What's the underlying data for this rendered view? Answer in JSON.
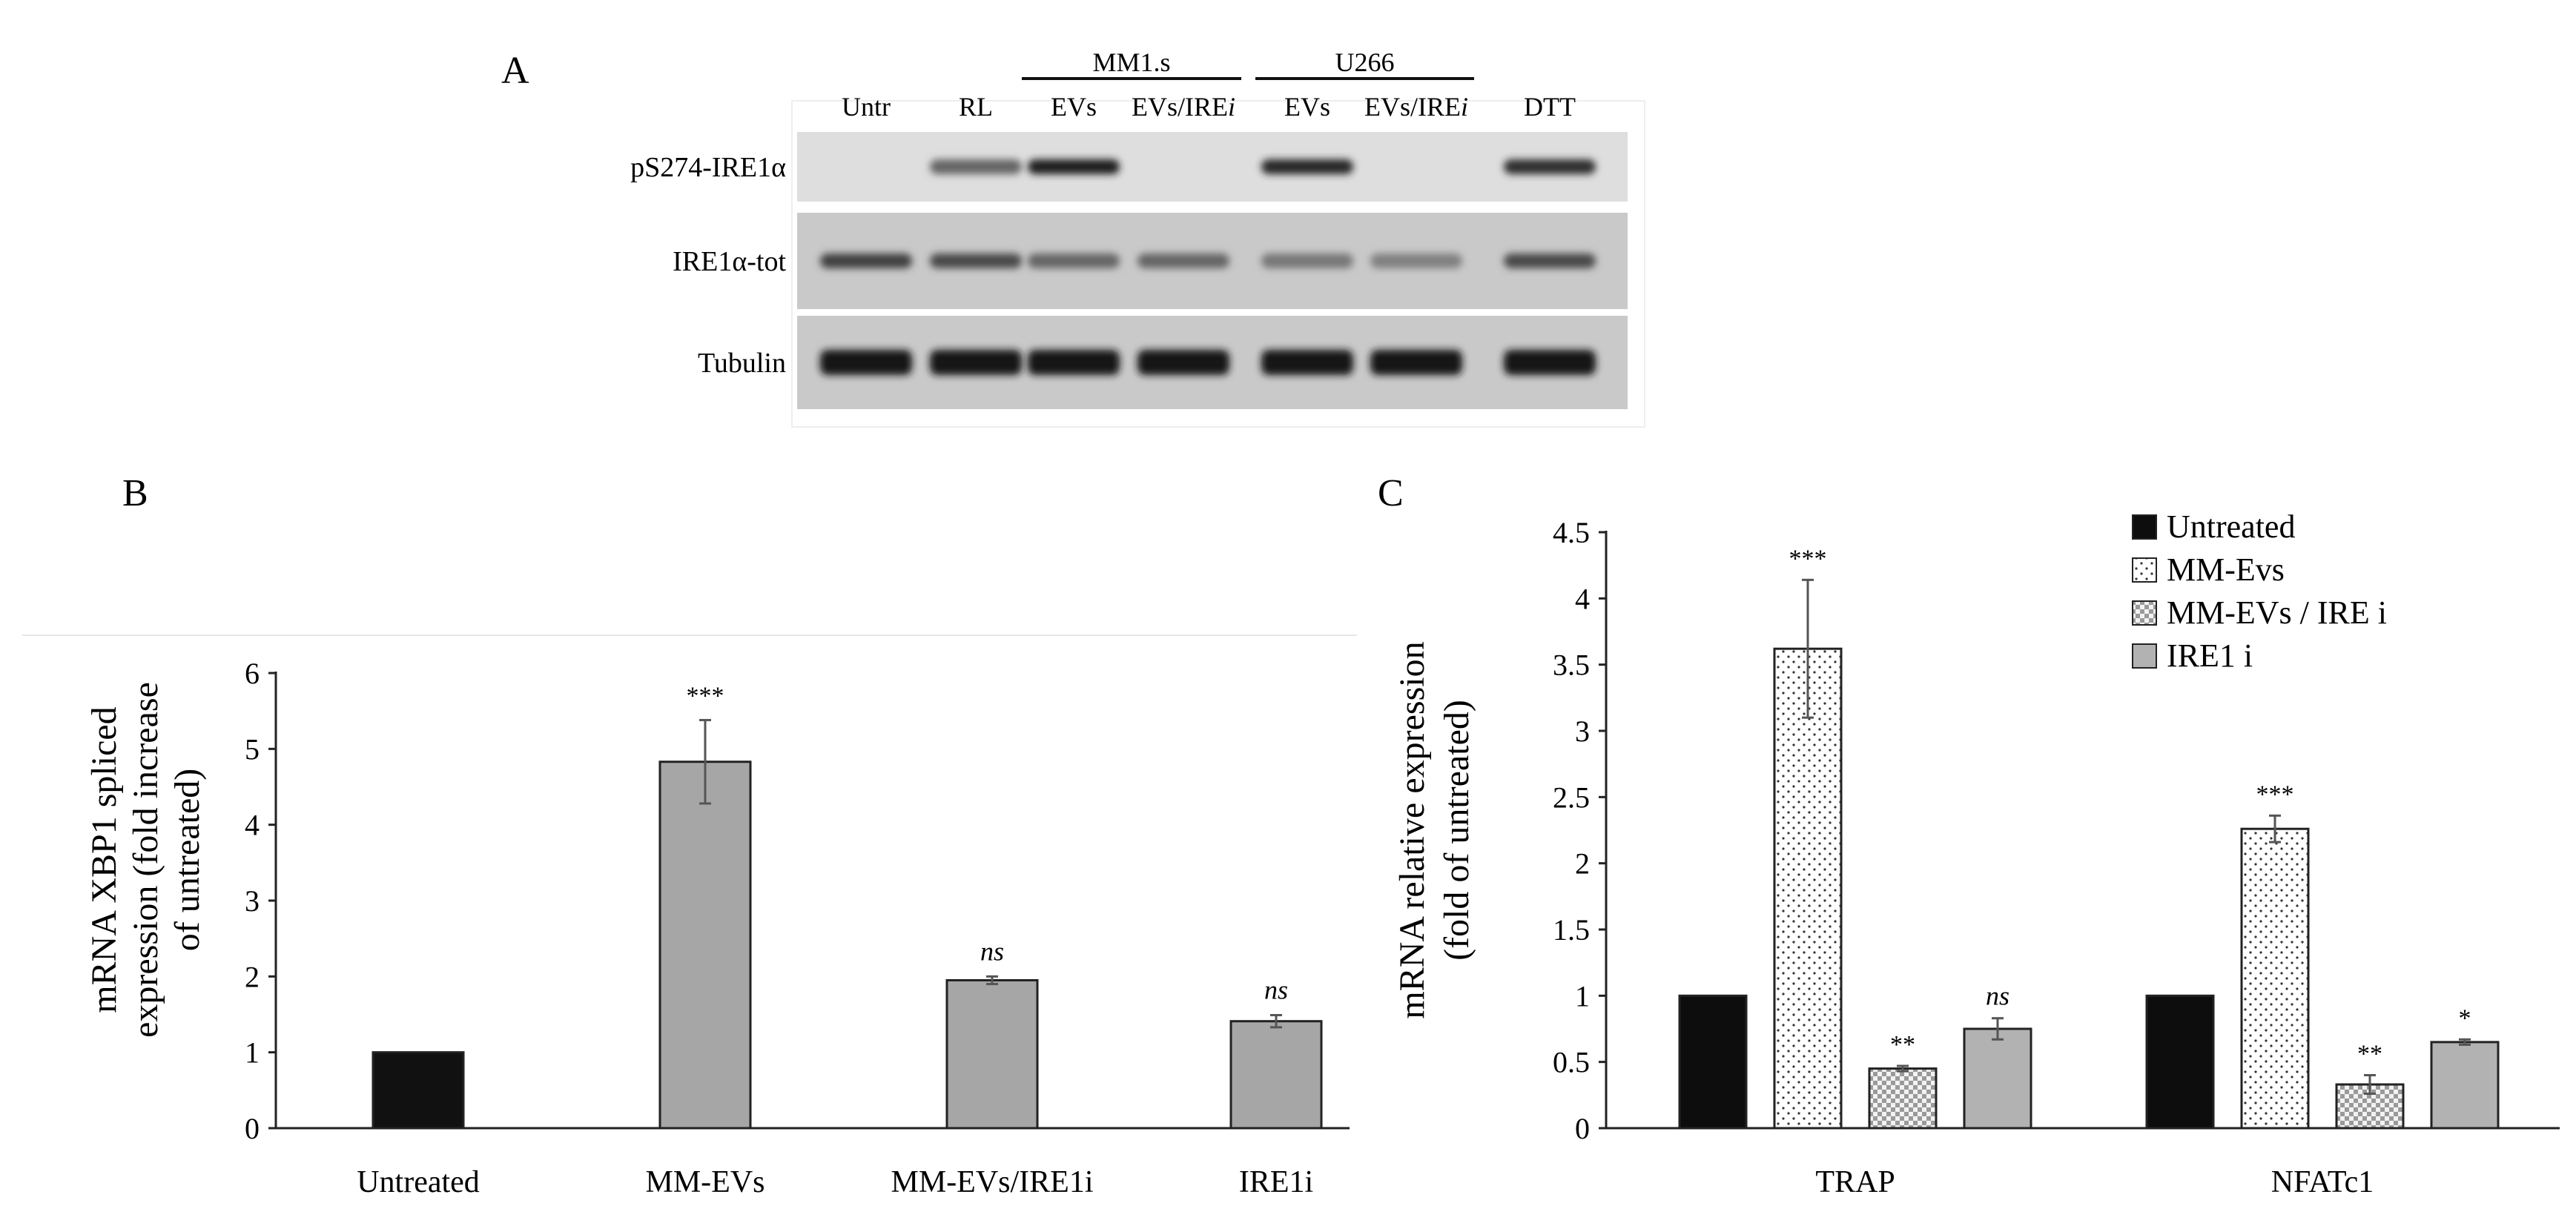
{
  "panels": {
    "a": "A",
    "b": "B",
    "c": "C"
  },
  "blot": {
    "groups": [
      {
        "label": "MM1.s",
        "from_lane": 2,
        "to_lane": 3
      },
      {
        "label": "U266",
        "from_lane": 4,
        "to_lane": 5
      }
    ],
    "lanes": [
      "Untr",
      "RL",
      "EVs",
      "EVs/IRE",
      "EVs",
      "EVs/IRE",
      "DTT"
    ],
    "lane_suffix": "i",
    "rows": [
      {
        "label": "pS274-IRE1α",
        "intensity": [
          0.0,
          0.55,
          0.95,
          0.0,
          0.9,
          0.0,
          0.85
        ]
      },
      {
        "label": "IRE1α-tot",
        "intensity": [
          0.75,
          0.7,
          0.55,
          0.55,
          0.45,
          0.4,
          0.7
        ]
      },
      {
        "label": "Tubulin",
        "intensity": [
          1.0,
          1.0,
          1.0,
          1.0,
          1.0,
          1.0,
          1.0
        ]
      }
    ]
  },
  "chart_data": [
    {
      "type": "bar",
      "ylabel_lines": [
        "mRNA XBP1 spliced",
        "expression  (fold increase",
        "of untreated)"
      ],
      "ylim": [
        0,
        6
      ],
      "yticks": [
        0,
        1,
        2,
        3,
        4,
        5,
        6
      ],
      "categories": [
        "Untreated",
        "MM-EVs",
        "MM-EVs/IRE1i",
        "IRE1i"
      ],
      "values": [
        1.0,
        4.83,
        1.95,
        1.41
      ],
      "errors": [
        0.0,
        0.55,
        0.05,
        0.08
      ],
      "significance": [
        "",
        "***",
        "ns",
        "ns"
      ],
      "colors": [
        "#111111",
        "#a6a6a6",
        "#a6a6a6",
        "#a6a6a6"
      ]
    },
    {
      "type": "bar",
      "ylabel_lines": [
        "mRNA relative expression",
        "(fold of untreated)"
      ],
      "ylim": [
        0,
        4.5
      ],
      "yticks": [
        "0",
        "0.5",
        "1",
        "1.5",
        "2",
        "2.5",
        "3",
        "3.5",
        "4",
        "4.5"
      ],
      "categories": [
        "TRAP",
        "NFATc1"
      ],
      "series": [
        {
          "name": "Untreated",
          "values": [
            1.0,
            1.0
          ],
          "errors": [
            0.0,
            0.0
          ],
          "significance": [
            "",
            ""
          ],
          "pattern": "solid-black"
        },
        {
          "name": "MM-Evs",
          "values": [
            3.62,
            2.26
          ],
          "errors": [
            0.52,
            0.1
          ],
          "significance": [
            "***",
            "***"
          ],
          "pattern": "dots"
        },
        {
          "name": "MM-EVs / IRE i",
          "values": [
            0.45,
            0.33
          ],
          "errors": [
            0.02,
            0.07
          ],
          "significance": [
            "**",
            "**"
          ],
          "pattern": "checker"
        },
        {
          "name": "IRE1 i",
          "values": [
            0.75,
            0.65
          ],
          "errors": [
            0.08,
            0.02
          ],
          "significance": [
            "ns",
            "*"
          ],
          "pattern": "solid-gray"
        }
      ],
      "legend_position": "top-right"
    }
  ]
}
